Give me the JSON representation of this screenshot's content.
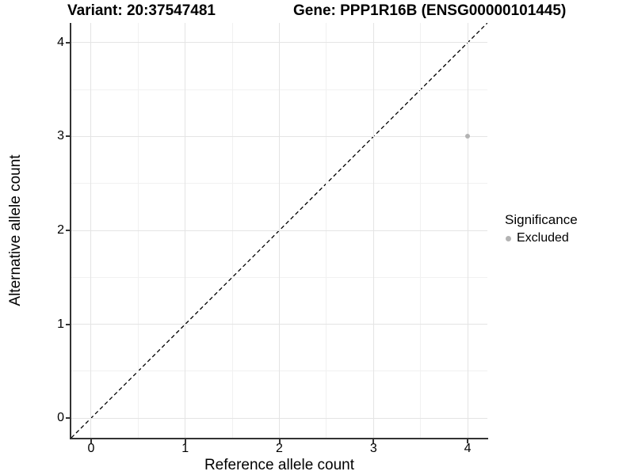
{
  "chart_data": {
    "type": "scatter",
    "title_left": "Variant: 20:37547481",
    "title_right": "Gene: PPP1R16B (ENSG00000101445)",
    "xlabel": "Reference allele count",
    "ylabel": "Alternative allele count",
    "xlim": [
      -0.21,
      4.21
    ],
    "ylim": [
      -0.21,
      4.21
    ],
    "xticks": [
      0,
      1,
      2,
      3,
      4
    ],
    "yticks": [
      0,
      1,
      2,
      3,
      4
    ],
    "x_minor_gridlines": [
      0.5,
      1.5,
      2.5,
      3.5
    ],
    "y_minor_gridlines": [
      0.5,
      1.5,
      2.5,
      3.5
    ],
    "grid": "major+minor",
    "series": [
      {
        "name": "Excluded",
        "marker": "circle",
        "color": "#b3b3b3",
        "points": [
          {
            "x": 4,
            "y": 3
          }
        ]
      }
    ],
    "reference_line": {
      "equation": "y = x",
      "style": "dashed",
      "color": "#000000"
    },
    "legend": {
      "title": "Significance",
      "position": "right",
      "entries": [
        {
          "label": "Excluded",
          "color": "#b3b3b3",
          "marker": "circle"
        }
      ]
    },
    "colors": {
      "grid_major": "#e4e4e4",
      "grid_minor": "#f1f1f1",
      "axis_line": "#333333",
      "text": "#000000"
    }
  }
}
